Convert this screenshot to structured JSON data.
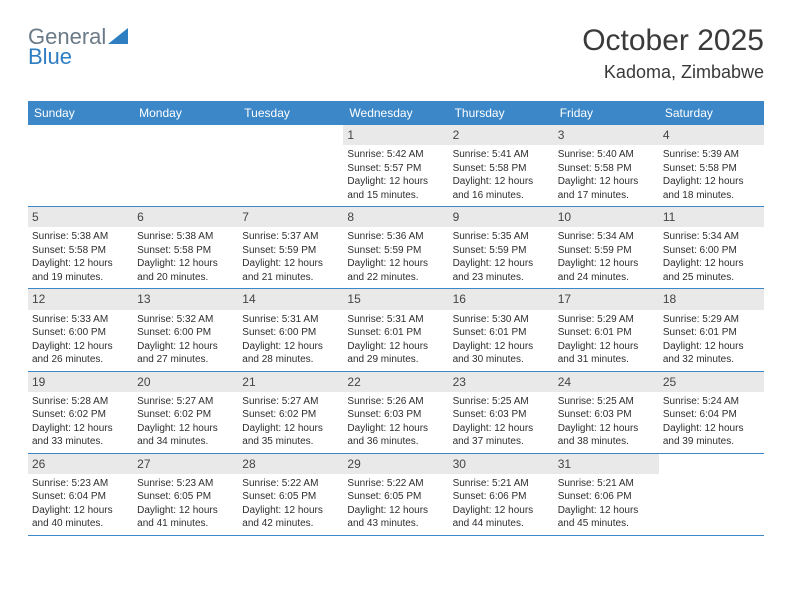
{
  "logo": {
    "line1": "General",
    "line2": "Blue"
  },
  "title": "October 2025",
  "location": "Kadoma, Zimbabwe",
  "colors": {
    "header_bg": "#3c87c7",
    "header_text": "#ffffff",
    "daynum_bg": "#e9e9e9",
    "border": "#3c87c7",
    "logo_gray": "#6b7a87",
    "logo_blue": "#2f7ec2"
  },
  "weekdays": [
    "Sunday",
    "Monday",
    "Tuesday",
    "Wednesday",
    "Thursday",
    "Friday",
    "Saturday"
  ],
  "labels": {
    "sunrise": "Sunrise:",
    "sunset": "Sunset:",
    "daylight": "Daylight:"
  },
  "weeks": [
    [
      null,
      null,
      null,
      {
        "n": "1",
        "sunrise": "5:42 AM",
        "sunset": "5:57 PM",
        "daylight": "12 hours and 15 minutes."
      },
      {
        "n": "2",
        "sunrise": "5:41 AM",
        "sunset": "5:58 PM",
        "daylight": "12 hours and 16 minutes."
      },
      {
        "n": "3",
        "sunrise": "5:40 AM",
        "sunset": "5:58 PM",
        "daylight": "12 hours and 17 minutes."
      },
      {
        "n": "4",
        "sunrise": "5:39 AM",
        "sunset": "5:58 PM",
        "daylight": "12 hours and 18 minutes."
      }
    ],
    [
      {
        "n": "5",
        "sunrise": "5:38 AM",
        "sunset": "5:58 PM",
        "daylight": "12 hours and 19 minutes."
      },
      {
        "n": "6",
        "sunrise": "5:38 AM",
        "sunset": "5:58 PM",
        "daylight": "12 hours and 20 minutes."
      },
      {
        "n": "7",
        "sunrise": "5:37 AM",
        "sunset": "5:59 PM",
        "daylight": "12 hours and 21 minutes."
      },
      {
        "n": "8",
        "sunrise": "5:36 AM",
        "sunset": "5:59 PM",
        "daylight": "12 hours and 22 minutes."
      },
      {
        "n": "9",
        "sunrise": "5:35 AM",
        "sunset": "5:59 PM",
        "daylight": "12 hours and 23 minutes."
      },
      {
        "n": "10",
        "sunrise": "5:34 AM",
        "sunset": "5:59 PM",
        "daylight": "12 hours and 24 minutes."
      },
      {
        "n": "11",
        "sunrise": "5:34 AM",
        "sunset": "6:00 PM",
        "daylight": "12 hours and 25 minutes."
      }
    ],
    [
      {
        "n": "12",
        "sunrise": "5:33 AM",
        "sunset": "6:00 PM",
        "daylight": "12 hours and 26 minutes."
      },
      {
        "n": "13",
        "sunrise": "5:32 AM",
        "sunset": "6:00 PM",
        "daylight": "12 hours and 27 minutes."
      },
      {
        "n": "14",
        "sunrise": "5:31 AM",
        "sunset": "6:00 PM",
        "daylight": "12 hours and 28 minutes."
      },
      {
        "n": "15",
        "sunrise": "5:31 AM",
        "sunset": "6:01 PM",
        "daylight": "12 hours and 29 minutes."
      },
      {
        "n": "16",
        "sunrise": "5:30 AM",
        "sunset": "6:01 PM",
        "daylight": "12 hours and 30 minutes."
      },
      {
        "n": "17",
        "sunrise": "5:29 AM",
        "sunset": "6:01 PM",
        "daylight": "12 hours and 31 minutes."
      },
      {
        "n": "18",
        "sunrise": "5:29 AM",
        "sunset": "6:01 PM",
        "daylight": "12 hours and 32 minutes."
      }
    ],
    [
      {
        "n": "19",
        "sunrise": "5:28 AM",
        "sunset": "6:02 PM",
        "daylight": "12 hours and 33 minutes."
      },
      {
        "n": "20",
        "sunrise": "5:27 AM",
        "sunset": "6:02 PM",
        "daylight": "12 hours and 34 minutes."
      },
      {
        "n": "21",
        "sunrise": "5:27 AM",
        "sunset": "6:02 PM",
        "daylight": "12 hours and 35 minutes."
      },
      {
        "n": "22",
        "sunrise": "5:26 AM",
        "sunset": "6:03 PM",
        "daylight": "12 hours and 36 minutes."
      },
      {
        "n": "23",
        "sunrise": "5:25 AM",
        "sunset": "6:03 PM",
        "daylight": "12 hours and 37 minutes."
      },
      {
        "n": "24",
        "sunrise": "5:25 AM",
        "sunset": "6:03 PM",
        "daylight": "12 hours and 38 minutes."
      },
      {
        "n": "25",
        "sunrise": "5:24 AM",
        "sunset": "6:04 PM",
        "daylight": "12 hours and 39 minutes."
      }
    ],
    [
      {
        "n": "26",
        "sunrise": "5:23 AM",
        "sunset": "6:04 PM",
        "daylight": "12 hours and 40 minutes."
      },
      {
        "n": "27",
        "sunrise": "5:23 AM",
        "sunset": "6:05 PM",
        "daylight": "12 hours and 41 minutes."
      },
      {
        "n": "28",
        "sunrise": "5:22 AM",
        "sunset": "6:05 PM",
        "daylight": "12 hours and 42 minutes."
      },
      {
        "n": "29",
        "sunrise": "5:22 AM",
        "sunset": "6:05 PM",
        "daylight": "12 hours and 43 minutes."
      },
      {
        "n": "30",
        "sunrise": "5:21 AM",
        "sunset": "6:06 PM",
        "daylight": "12 hours and 44 minutes."
      },
      {
        "n": "31",
        "sunrise": "5:21 AM",
        "sunset": "6:06 PM",
        "daylight": "12 hours and 45 minutes."
      },
      null
    ]
  ]
}
